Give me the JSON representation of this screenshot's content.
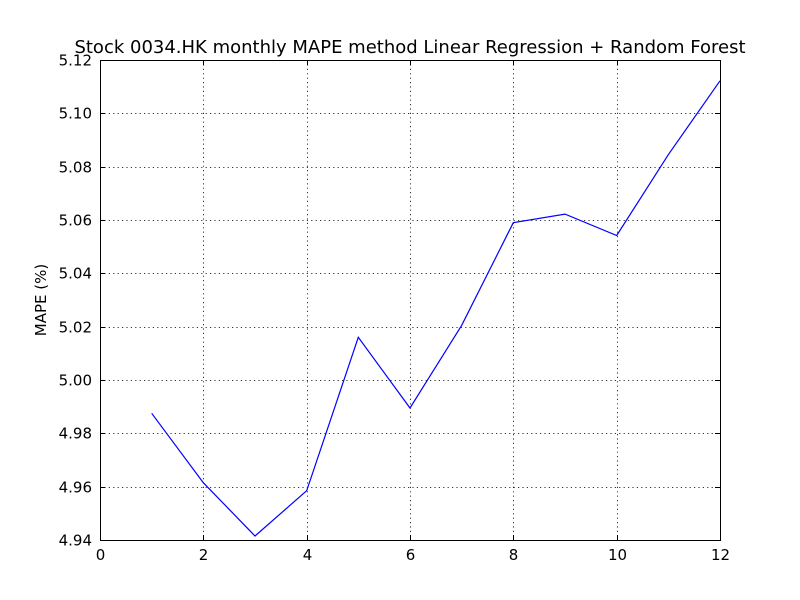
{
  "chart_data": {
    "type": "line",
    "title": "Stock 0034.HK monthly MAPE method Linear Regression + Random Forest",
    "xlabel": "",
    "ylabel": "MAPE (%)",
    "xlim": [
      0,
      12
    ],
    "ylim": [
      4.94,
      5.12
    ],
    "xticks": [
      0,
      2,
      4,
      6,
      8,
      10,
      12
    ],
    "yticks": [
      4.94,
      4.96,
      4.98,
      5.0,
      5.02,
      5.04,
      5.06,
      5.08,
      5.1,
      5.12
    ],
    "ytick_labels": [
      "4.94",
      "4.96",
      "4.98",
      "5.00",
      "5.02",
      "5.04",
      "5.06",
      "5.08",
      "5.10",
      "5.12"
    ],
    "xtick_labels": [
      "0",
      "2",
      "4",
      "6",
      "8",
      "10",
      "12"
    ],
    "grid": true,
    "series": [
      {
        "color": "#0000ff",
        "x": [
          1,
          2,
          3,
          4,
          5,
          6,
          7,
          8,
          9,
          10,
          11,
          12
        ],
        "y": [
          4.9875,
          4.9615,
          4.9415,
          4.9585,
          5.016,
          4.9895,
          5.0205,
          5.059,
          5.0622,
          5.0542,
          5.0845,
          5.1122
        ]
      }
    ]
  }
}
